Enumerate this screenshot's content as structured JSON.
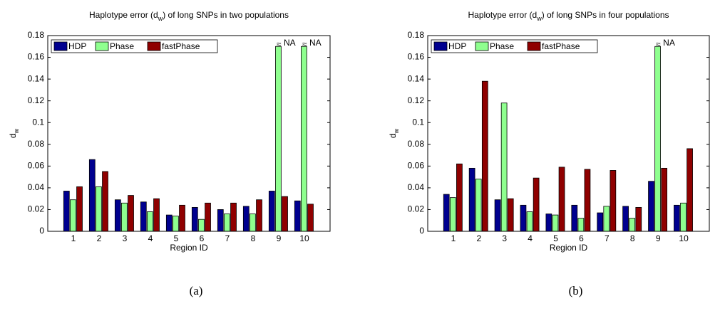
{
  "chart_data": [
    {
      "type": "bar",
      "title": [
        "Haplotype error (d",
        "w",
        ") of long SNPs in two populations"
      ],
      "xlabel": "Region ID",
      "ylabel": [
        "d",
        "w"
      ],
      "categories": [
        "1",
        "2",
        "3",
        "4",
        "5",
        "6",
        "7",
        "8",
        "9",
        "10"
      ],
      "series": [
        {
          "name": "HDP",
          "color": "#00008f",
          "values": [
            0.037,
            0.066,
            0.029,
            0.027,
            0.015,
            0.022,
            0.02,
            0.023,
            0.037,
            0.028
          ]
        },
        {
          "name": "Phase",
          "color": "#8fff8f",
          "values": [
            0.029,
            0.041,
            0.026,
            0.018,
            0.014,
            0.011,
            0.016,
            0.016,
            0.17,
            0.17
          ]
        },
        {
          "name": "fastPhase",
          "color": "#8f0000",
          "values": [
            0.041,
            0.055,
            0.033,
            0.03,
            0.024,
            0.026,
            0.026,
            0.029,
            0.032,
            0.025
          ]
        }
      ],
      "annotations": [
        {
          "category": "9",
          "symbol": "≈",
          "text": "NA"
        },
        {
          "category": "10",
          "symbol": "≈",
          "text": "NA"
        }
      ],
      "ylim": [
        0,
        0.18
      ],
      "yticks": [
        0,
        0.02,
        0.04,
        0.06,
        0.08,
        0.1,
        0.12,
        0.14,
        0.16,
        0.18
      ],
      "legend": "upper-left",
      "caption": "(a)"
    },
    {
      "type": "bar",
      "title": [
        "Haplotype error (d",
        "w",
        ") of long SNPs in four populations"
      ],
      "xlabel": "Region ID",
      "ylabel": [
        "d",
        "w"
      ],
      "categories": [
        "1",
        "2",
        "3",
        "4",
        "5",
        "6",
        "7",
        "8",
        "9",
        "10"
      ],
      "series": [
        {
          "name": "HDP",
          "color": "#00008f",
          "values": [
            0.034,
            0.058,
            0.029,
            0.024,
            0.016,
            0.024,
            0.017,
            0.023,
            0.046,
            0.024
          ]
        },
        {
          "name": "Phase",
          "color": "#8fff8f",
          "values": [
            0.031,
            0.048,
            0.118,
            0.018,
            0.015,
            0.012,
            0.023,
            0.012,
            0.17,
            0.026
          ]
        },
        {
          "name": "fastPhase",
          "color": "#8f0000",
          "values": [
            0.062,
            0.138,
            0.03,
            0.049,
            0.059,
            0.057,
            0.056,
            0.022,
            0.058,
            0.076
          ]
        }
      ],
      "annotations": [
        {
          "category": "9",
          "symbol": "≈",
          "text": "NA"
        }
      ],
      "ylim": [
        0,
        0.18
      ],
      "yticks": [
        0,
        0.02,
        0.04,
        0.06,
        0.08,
        0.1,
        0.12,
        0.14,
        0.16,
        0.18
      ],
      "legend": "upper-left",
      "caption": "(b)"
    }
  ]
}
